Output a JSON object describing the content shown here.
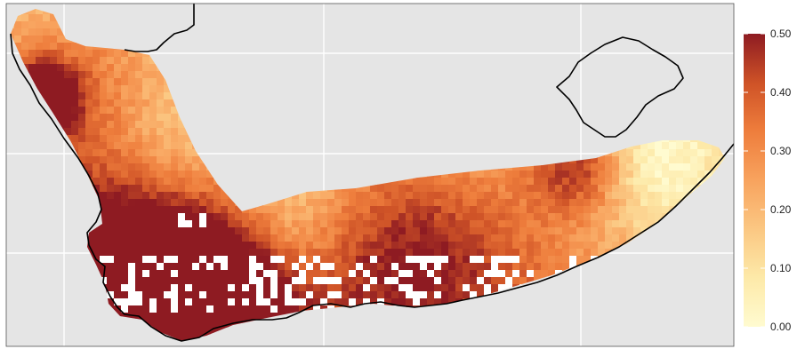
{
  "map": {
    "background_color": "#e5e5e5",
    "gridline_color": "#ffffff",
    "coastline_color": "#000000",
    "missing_cell_color": "#ffffff"
  },
  "legend": {
    "scale_min": 0.0,
    "scale_max": 0.5,
    "colors": [
      "#fffbd0",
      "#fde9a8",
      "#fbc883",
      "#f8a35e",
      "#ee7d3c",
      "#cf5327",
      "#8e1b22"
    ],
    "ticks": [
      {
        "value": 0.0,
        "label": "0.00"
      },
      {
        "value": 0.1,
        "label": "0.10"
      },
      {
        "value": 0.2,
        "label": "0.20"
      },
      {
        "value": 0.3,
        "label": "0.30"
      },
      {
        "value": 0.4,
        "label": "0.40"
      },
      {
        "value": 0.5,
        "label": "0.50"
      }
    ]
  }
}
